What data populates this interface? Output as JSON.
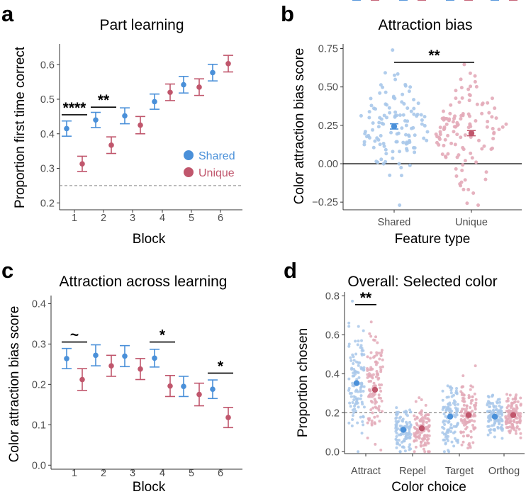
{
  "colors": {
    "shared": "#4a90d9",
    "unique": "#c0566c",
    "shared_light": "#a9c8ea",
    "unique_light": "#e3aab8"
  },
  "panels": {
    "a": "a",
    "b": "b",
    "c": "c",
    "d": "d"
  },
  "chart_data": [
    {
      "id": "a",
      "type": "scatter",
      "title": "Part learning",
      "xlabel": "Block",
      "ylabel": "Proportion first time correct",
      "categories": [
        "1",
        "2",
        "3",
        "4",
        "5",
        "6"
      ],
      "ylim": [
        0.18,
        0.66
      ],
      "yticks": [
        0.2,
        0.3,
        0.4,
        0.5,
        0.6
      ],
      "ytick_labels": [
        "0.2",
        "0.3",
        "0.4",
        "0.5",
        "0.6"
      ],
      "reference_line": 0.25,
      "legend": [
        "Shared",
        "Unique"
      ],
      "legend_position": "bottom-right",
      "series": [
        {
          "name": "Shared",
          "mean": [
            0.415,
            0.44,
            0.452,
            0.493,
            0.542,
            0.577
          ],
          "se": [
            0.022,
            0.022,
            0.023,
            0.022,
            0.024,
            0.024
          ]
        },
        {
          "name": "Unique",
          "mean": [
            0.313,
            0.367,
            0.425,
            0.52,
            0.535,
            0.603
          ],
          "se": [
            0.022,
            0.024,
            0.025,
            0.024,
            0.024,
            0.024
          ]
        }
      ],
      "significance": [
        {
          "block": "1",
          "label": "****",
          "y": 0.455
        },
        {
          "block": "2",
          "label": "**",
          "y": 0.477
        }
      ]
    },
    {
      "id": "b",
      "type": "scatter",
      "title": "Attraction bias",
      "xlabel": "Feature type",
      "ylabel": "Color attraction bias score",
      "categories": [
        "Shared",
        "Unique"
      ],
      "ylim": [
        -0.3,
        0.78
      ],
      "yticks": [
        -0.25,
        0,
        0.25,
        0.5,
        0.75
      ],
      "ytick_labels": [
        "−0.25",
        "0.00",
        "0.25",
        "0.50",
        "0.75"
      ],
      "reference_line": 0,
      "series": [
        {
          "name": "Shared",
          "mean": 0.243,
          "se": 0.017
        },
        {
          "name": "Unique",
          "mean": 0.199,
          "se": 0.017
        }
      ],
      "significance": [
        {
          "label": "**",
          "y": 0.66
        }
      ]
    },
    {
      "id": "c",
      "type": "scatter",
      "title": "Attraction across learning",
      "xlabel": "Block",
      "ylabel": "Color attraction bias score",
      "categories": [
        "1",
        "2",
        "3",
        "4",
        "5",
        "6"
      ],
      "ylim": [
        -0.01,
        0.42
      ],
      "yticks": [
        0.0,
        0.1,
        0.2,
        0.3,
        0.4
      ],
      "ytick_labels": [
        "0.0",
        "0.1",
        "0.2",
        "0.3",
        "0.4"
      ],
      "series": [
        {
          "name": "Shared",
          "mean": [
            0.264,
            0.272,
            0.27,
            0.265,
            0.195,
            0.188
          ],
          "se": [
            0.025,
            0.026,
            0.026,
            0.022,
            0.025,
            0.023
          ]
        },
        {
          "name": "Unique",
          "mean": [
            0.212,
            0.246,
            0.238,
            0.196,
            0.175,
            0.118
          ],
          "se": [
            0.027,
            0.026,
            0.026,
            0.026,
            0.028,
            0.025
          ]
        }
      ],
      "significance": [
        {
          "block": "1",
          "label": "~",
          "y": 0.305
        },
        {
          "block": "4",
          "label": "*",
          "y": 0.305
        },
        {
          "block": "6",
          "label": "*",
          "y": 0.228
        }
      ]
    },
    {
      "id": "d",
      "type": "scatter",
      "title": "Overall: Selected color",
      "xlabel": "Color choice",
      "ylabel": "Proportion chosen",
      "categories": [
        "Attract",
        "Repel",
        "Target",
        "Orthog"
      ],
      "ylim": [
        -0.01,
        0.82
      ],
      "yticks": [
        0.0,
        0.2,
        0.4,
        0.6,
        0.8
      ],
      "ytick_labels": [
        "0.0",
        "0.2",
        "0.4",
        "0.6",
        "0.8"
      ],
      "reference_line": 0.2,
      "series": [
        {
          "name": "Shared",
          "mean": [
            0.352,
            0.112,
            0.18,
            0.18
          ],
          "se": [
            0.012,
            0.008,
            0.009,
            0.008
          ]
        },
        {
          "name": "Unique",
          "mean": [
            0.318,
            0.12,
            0.188,
            0.188
          ],
          "se": [
            0.012,
            0.008,
            0.009,
            0.008
          ]
        }
      ],
      "significance": [
        {
          "category": "Attract",
          "label": "**",
          "y": 0.755
        }
      ]
    }
  ]
}
